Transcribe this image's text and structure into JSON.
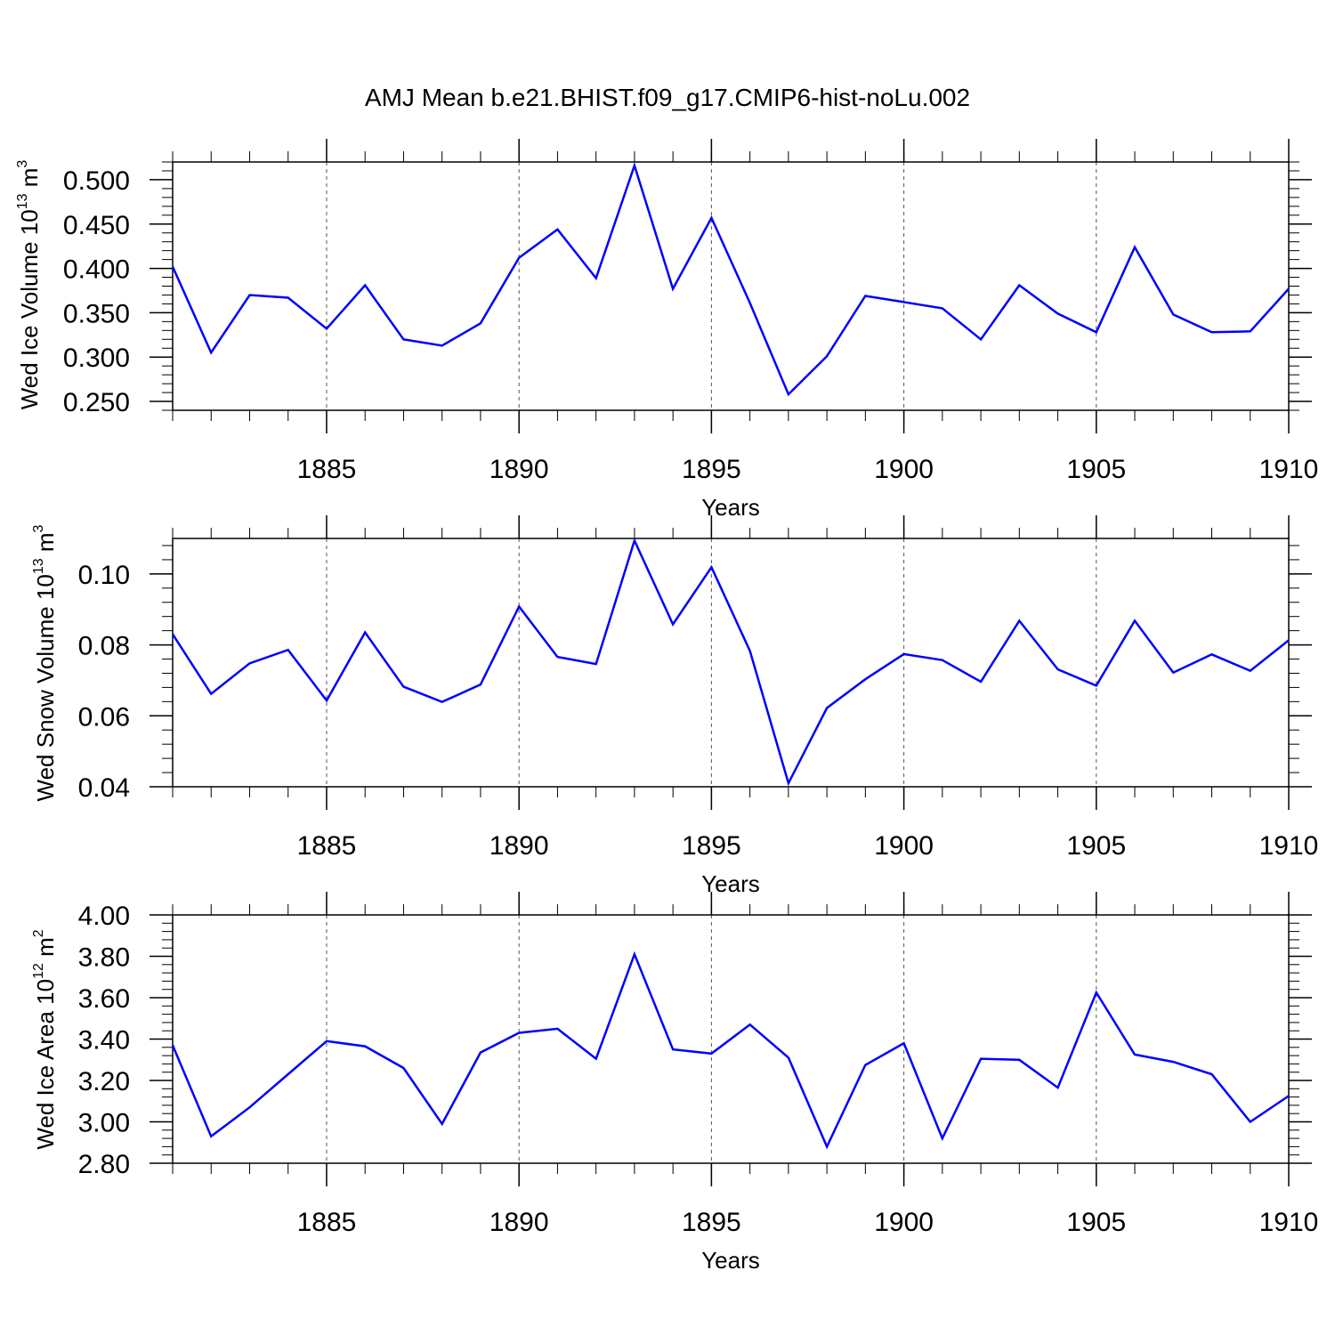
{
  "title": "AMJ Mean b.e21.BHIST.f09_g17.CMIP6-hist-noLu.002",
  "colors": {
    "line": "#0000ff",
    "frame": "#000000",
    "grid": "#555555"
  },
  "chart_data": [
    {
      "type": "line",
      "ylabel": {
        "main": "Wed Ice Volume 10",
        "exp": "13",
        "unit": " m",
        "unit_exp": "3"
      },
      "xlabel": "Years",
      "xlim": [
        1881,
        1910
      ],
      "ylim": [
        0.24,
        0.52
      ],
      "yticks": [
        0.25,
        0.3,
        0.35,
        0.4,
        0.45,
        0.5
      ],
      "ytick_labels": [
        "0.250",
        "0.300",
        "0.350",
        "0.400",
        "0.450",
        "0.500"
      ],
      "xticks": [
        1885,
        1890,
        1895,
        1900,
        1905,
        1910
      ],
      "xtick_labels": [
        "1885",
        "1890",
        "1895",
        "1900",
        "1905",
        "1910"
      ],
      "x": [
        1881,
        1882,
        1883,
        1884,
        1885,
        1886,
        1887,
        1888,
        1889,
        1890,
        1891,
        1892,
        1893,
        1894,
        1895,
        1896,
        1897,
        1898,
        1899,
        1900,
        1901,
        1902,
        1903,
        1904,
        1905,
        1906,
        1907,
        1908,
        1909,
        1910
      ],
      "series": [
        {
          "values": [
            0.402,
            0.305,
            0.37,
            0.367,
            0.332,
            0.381,
            0.32,
            0.313,
            0.338,
            0.412,
            0.444,
            0.389,
            0.516,
            0.377,
            0.457,
            0.361,
            0.258,
            0.301,
            0.369,
            0.362,
            0.355,
            0.32,
            0.381,
            0.349,
            0.328,
            0.424,
            0.348,
            0.328,
            0.329,
            0.377
          ]
        }
      ]
    },
    {
      "type": "line",
      "ylabel": {
        "main": "Wed Snow Volume 10",
        "exp": "13",
        "unit": " m",
        "unit_exp": "3"
      },
      "xlabel": "Years",
      "xlim": [
        1881,
        1910
      ],
      "ylim": [
        0.04,
        0.11
      ],
      "yticks": [
        0.04,
        0.06,
        0.08,
        0.1
      ],
      "ytick_labels": [
        "0.04",
        "0.06",
        "0.08",
        "0.10"
      ],
      "xticks": [
        1885,
        1890,
        1895,
        1900,
        1905,
        1910
      ],
      "xtick_labels": [
        "1885",
        "1890",
        "1895",
        "1900",
        "1905",
        "1910"
      ],
      "x": [
        1881,
        1882,
        1883,
        1884,
        1885,
        1886,
        1887,
        1888,
        1889,
        1890,
        1891,
        1892,
        1893,
        1894,
        1895,
        1896,
        1897,
        1898,
        1899,
        1900,
        1901,
        1902,
        1903,
        1904,
        1905,
        1906,
        1907,
        1908,
        1909,
        1910
      ],
      "series": [
        {
          "values": [
            0.083,
            0.0662,
            0.0748,
            0.0786,
            0.0643,
            0.0835,
            0.0682,
            0.0639,
            0.0688,
            0.0908,
            0.0766,
            0.0746,
            0.1094,
            0.0858,
            0.1019,
            0.0783,
            0.041,
            0.0622,
            0.0703,
            0.0774,
            0.0757,
            0.0696,
            0.0868,
            0.0731,
            0.0685,
            0.0868,
            0.0722,
            0.0773,
            0.0727,
            0.0813
          ]
        }
      ]
    },
    {
      "type": "line",
      "ylabel": {
        "main": "Wed Ice Area 10",
        "exp": "12",
        "unit": " m",
        "unit_exp": "2"
      },
      "xlabel": "Years",
      "xlim": [
        1881,
        1910
      ],
      "ylim": [
        2.8,
        4.0
      ],
      "yticks": [
        2.8,
        3.0,
        3.2,
        3.4,
        3.6,
        3.8,
        4.0
      ],
      "ytick_labels": [
        "2.80",
        "3.00",
        "3.20",
        "3.40",
        "3.60",
        "3.80",
        "4.00"
      ],
      "xticks": [
        1885,
        1890,
        1895,
        1900,
        1905,
        1910
      ],
      "xtick_labels": [
        "1885",
        "1890",
        "1895",
        "1900",
        "1905",
        "1910"
      ],
      "x": [
        1881,
        1882,
        1883,
        1884,
        1885,
        1886,
        1887,
        1888,
        1889,
        1890,
        1891,
        1892,
        1893,
        1894,
        1895,
        1896,
        1897,
        1898,
        1899,
        1900,
        1901,
        1902,
        1903,
        1904,
        1905,
        1906,
        1907,
        1908,
        1909,
        1910
      ],
      "series": [
        {
          "values": [
            3.37,
            2.93,
            3.07,
            3.23,
            3.39,
            3.365,
            3.26,
            2.99,
            3.335,
            3.43,
            3.45,
            3.305,
            3.81,
            3.35,
            3.33,
            3.47,
            3.31,
            2.88,
            3.275,
            3.38,
            2.92,
            3.305,
            3.3,
            3.165,
            3.625,
            3.325,
            3.29,
            3.23,
            3.0,
            3.125
          ]
        }
      ]
    }
  ]
}
